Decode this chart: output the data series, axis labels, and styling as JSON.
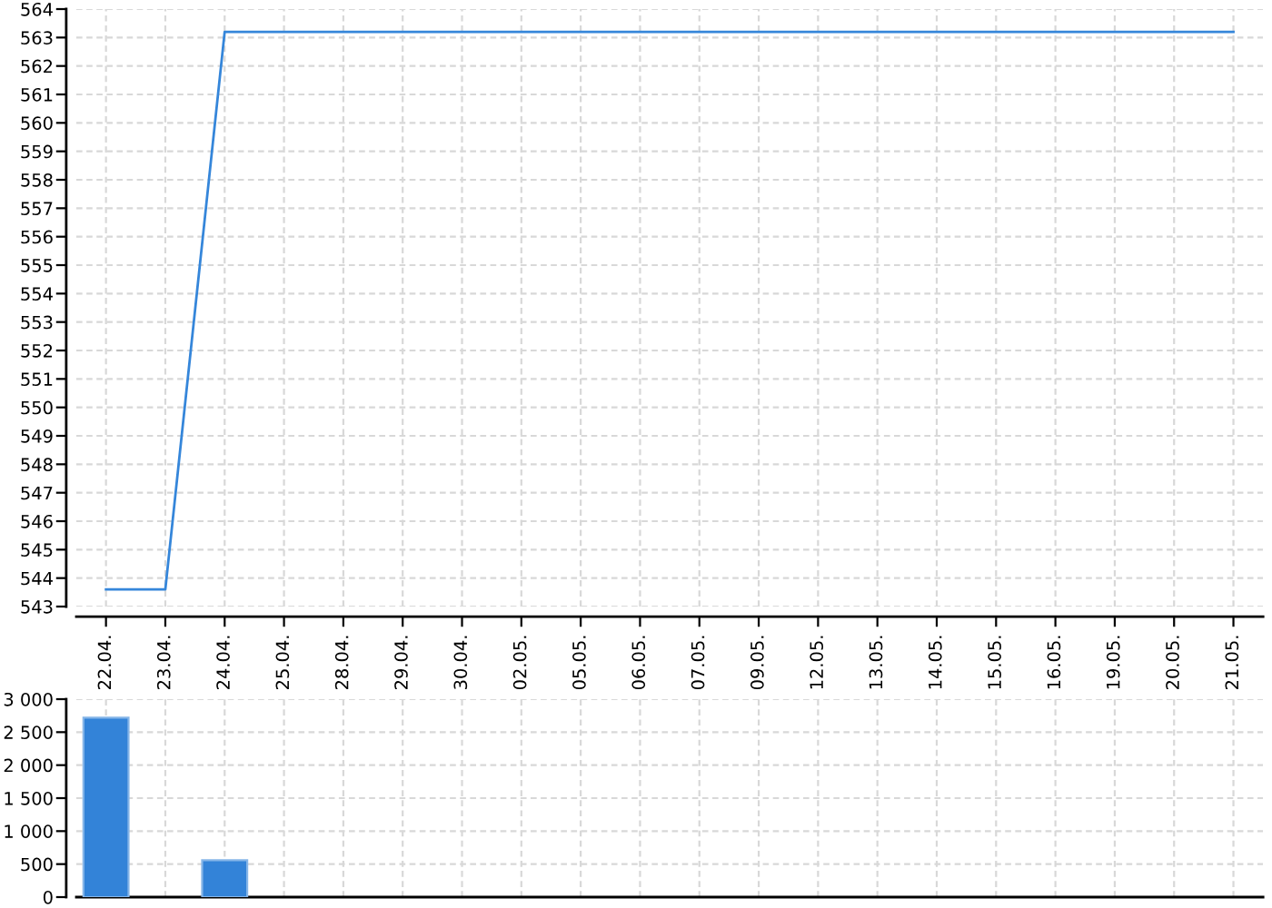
{
  "chart_data": [
    {
      "type": "line",
      "categories": [
        "22.04.",
        "23.04.",
        "24.04.",
        "25.04.",
        "28.04.",
        "29.04.",
        "30.04.",
        "02.05.",
        "05.05.",
        "06.05.",
        "07.05.",
        "09.05.",
        "12.05.",
        "13.05.",
        "14.05.",
        "15.05.",
        "16.05.",
        "19.05.",
        "20.05.",
        "21.05."
      ],
      "series": [
        {
          "color": "#3586da",
          "values": [
            543.6,
            543.6,
            563.2,
            563.2,
            563.2,
            563.2,
            563.2,
            563.2,
            563.2,
            563.2,
            563.2,
            563.2,
            563.2,
            563.2,
            563.2,
            563.2,
            563.2,
            563.2,
            563.2,
            563.2
          ]
        }
      ],
      "ylim": [
        543,
        564
      ],
      "yticks": [
        543,
        544,
        545,
        546,
        547,
        548,
        549,
        550,
        551,
        552,
        553,
        554,
        555,
        556,
        557,
        558,
        559,
        560,
        561,
        562,
        563,
        564
      ],
      "grid": true
    },
    {
      "type": "bar",
      "categories": [
        "22.04.",
        "23.04.",
        "24.04.",
        "25.04.",
        "28.04.",
        "29.04.",
        "30.04.",
        "02.05.",
        "05.05.",
        "06.05.",
        "07.05.",
        "09.05.",
        "12.05.",
        "13.05.",
        "14.05.",
        "15.05.",
        "16.05.",
        "19.05.",
        "20.05.",
        "21.05."
      ],
      "values": [
        2720,
        null,
        560,
        null,
        null,
        null,
        null,
        null,
        null,
        null,
        null,
        null,
        null,
        null,
        null,
        null,
        null,
        null,
        null,
        null
      ],
      "color": "#3383d8",
      "ylim": [
        0,
        3000
      ],
      "yticks": [
        0,
        500,
        {
          "value": 1000,
          "label": "1 000"
        },
        {
          "value": 1500,
          "label": "1 500"
        },
        {
          "value": 2000,
          "label": "2 000"
        },
        {
          "value": 2500,
          "label": "2 500"
        },
        {
          "value": 3000,
          "label": "3 000"
        }
      ],
      "grid": true,
      "tick_labels": "y"
    }
  ]
}
